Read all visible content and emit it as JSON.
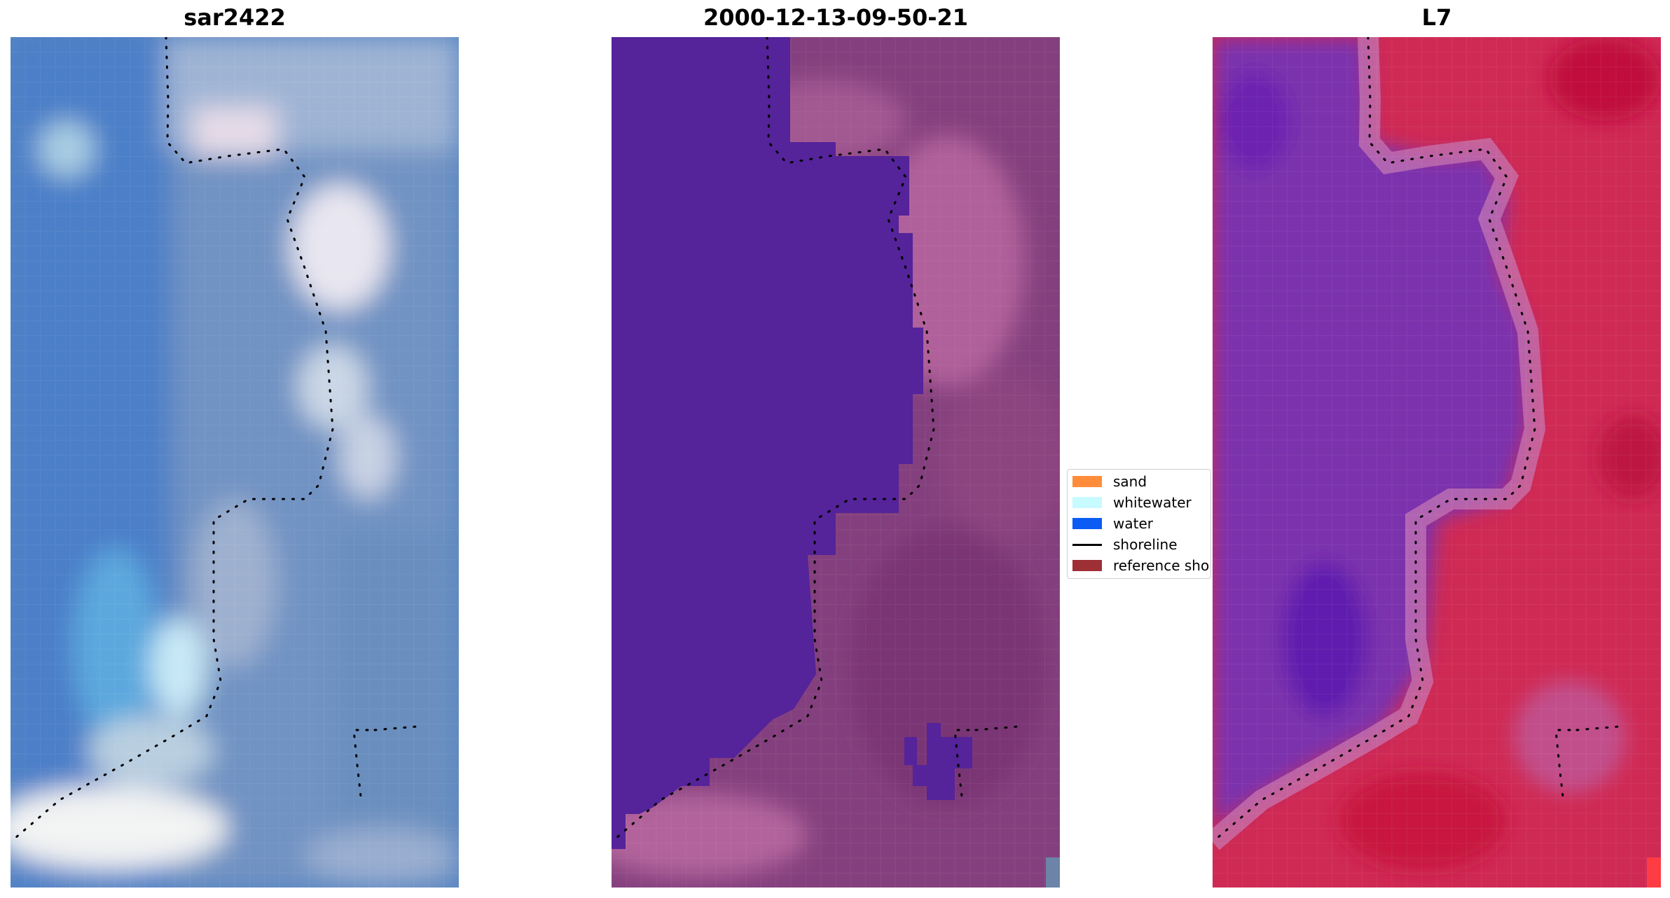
{
  "panels": [
    {
      "title": "sar2422",
      "kind": "rgb-image"
    },
    {
      "title": "2000-12-13-09-50-21",
      "kind": "classified-image"
    },
    {
      "title": "L7",
      "kind": "mndwi-image"
    }
  ],
  "legend": {
    "items": [
      {
        "label": "sand",
        "color": "#ff8c3a",
        "kind": "patch"
      },
      {
        "label": "whitewater",
        "color": "#c8fbff",
        "kind": "patch"
      },
      {
        "label": "water",
        "color": "#0a5cf5",
        "kind": "patch"
      },
      {
        "label": "shoreline",
        "color": "#000000",
        "kind": "line"
      },
      {
        "label": "reference shoreline buffer",
        "color": "#9e2f35",
        "kind": "patch"
      }
    ]
  },
  "colors": {
    "water_class": "#55239a",
    "sand_blend": "#8a3d7e",
    "mndwi_water": "#7a2ab0",
    "mndwi_land": "#cc1e4c",
    "rgb_sea": "#4d82c4"
  }
}
